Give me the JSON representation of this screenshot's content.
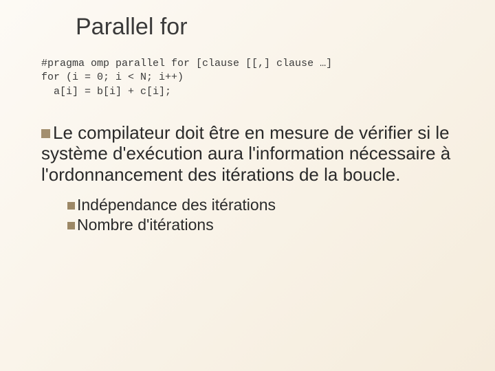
{
  "title": "Parallel for",
  "code": {
    "line1": "#pragma omp parallel for [clause [[,] clause …]",
    "line2": "for (i = 0; i < N; i++)",
    "line3": "  a[i] = b[i] + c[i];"
  },
  "body_lead": "Le",
  "body_rest": " compilateur doit être en mesure de vérifier si le système d'exécution aura l'information nécessaire à l'ordonnancement des itérations de la boucle.",
  "sub_items": [
    "Indépendance des itérations",
    "Nombre d'itérations"
  ],
  "colors": {
    "bullet": "#a38f6f",
    "text": "#2a2a2a",
    "title": "#3a3a3a",
    "bg_start": "#fdfaf5",
    "bg_end": "#f5ecdc"
  },
  "fonts": {
    "title_size": 34,
    "body_size": 26,
    "sub_size": 23,
    "code_size": 15
  }
}
